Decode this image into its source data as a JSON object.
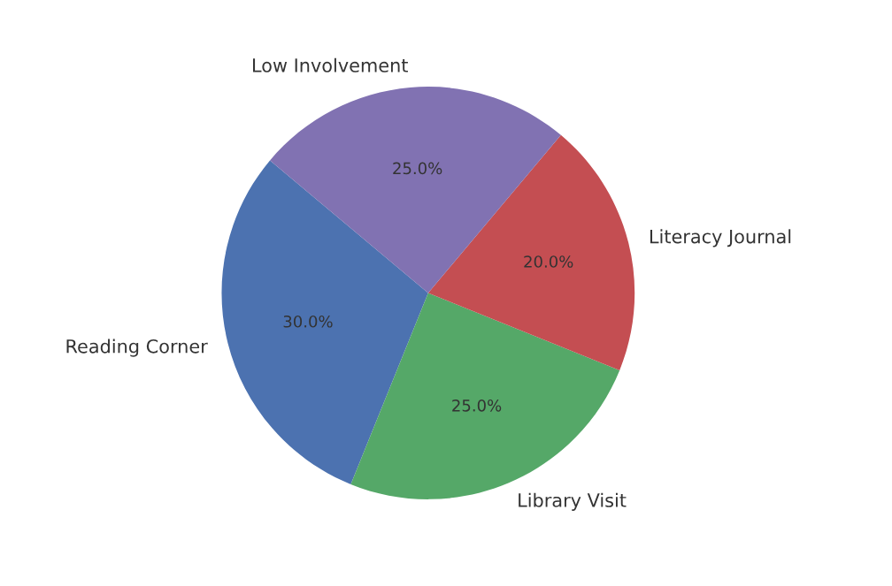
{
  "chart_data": {
    "type": "pie",
    "categories": [
      "Reading Corner",
      "Library Visit",
      "Literacy Journal",
      "Low Involvement"
    ],
    "values": [
      30,
      25,
      20,
      25
    ],
    "colors": [
      "#4c72b0",
      "#55a868",
      "#c44e52",
      "#8172b2"
    ],
    "value_labels": [
      "30.0%",
      "25.0%",
      "20.0%",
      "25.0%"
    ],
    "legend": false
  }
}
